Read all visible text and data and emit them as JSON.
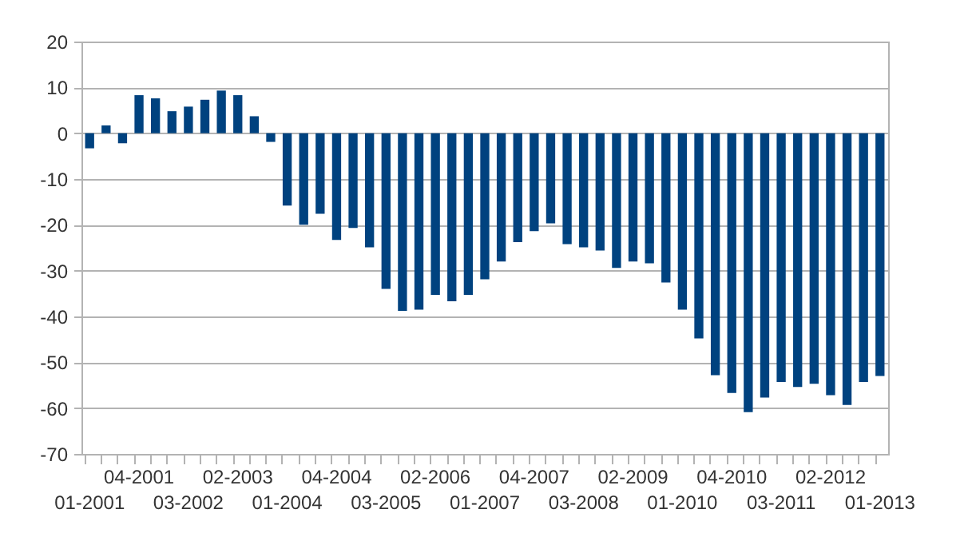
{
  "chart_data": {
    "type": "bar",
    "categories": [
      "01-2001",
      null,
      null,
      "04-2001",
      null,
      null,
      "03-2002",
      null,
      null,
      "02-2003",
      null,
      null,
      "01-2004",
      null,
      null,
      "04-2004",
      null,
      null,
      "03-2005",
      null,
      null,
      "02-2006",
      null,
      null,
      "01-2007",
      null,
      null,
      "04-2007",
      null,
      null,
      "03-2008",
      null,
      null,
      "02-2009",
      null,
      null,
      "01-2010",
      null,
      null,
      "04-2010",
      null,
      null,
      "03-2011",
      null,
      null,
      "02-2012",
      null,
      null,
      "01-2013"
    ],
    "values": [
      -3.3,
      1.7,
      -2.2,
      8.3,
      7.6,
      4.8,
      5.8,
      7.3,
      9.3,
      8.3,
      3.7,
      -1.9,
      -15.8,
      -20.0,
      -17.6,
      -23.3,
      -20.7,
      -24.9,
      -34.0,
      -38.8,
      -38.5,
      -35.3,
      -36.7,
      -35.3,
      -31.9,
      -28.0,
      -23.8,
      -21.4,
      -19.7,
      -24.2,
      -24.9,
      -25.6,
      -29.4,
      -28.0,
      -28.4,
      -32.6,
      -38.5,
      -44.8,
      -52.8,
      -56.7,
      -60.9,
      -57.7,
      -54.3,
      -55.4,
      -54.7,
      -57.2,
      -59.3,
      -54.3,
      -53.0
    ],
    "color": "#00427f",
    "ylim": [
      -70,
      20
    ],
    "yticks": [
      -70,
      -60,
      -50,
      -40,
      -30,
      -20,
      -10,
      0,
      10,
      20
    ],
    "grid": "y"
  }
}
